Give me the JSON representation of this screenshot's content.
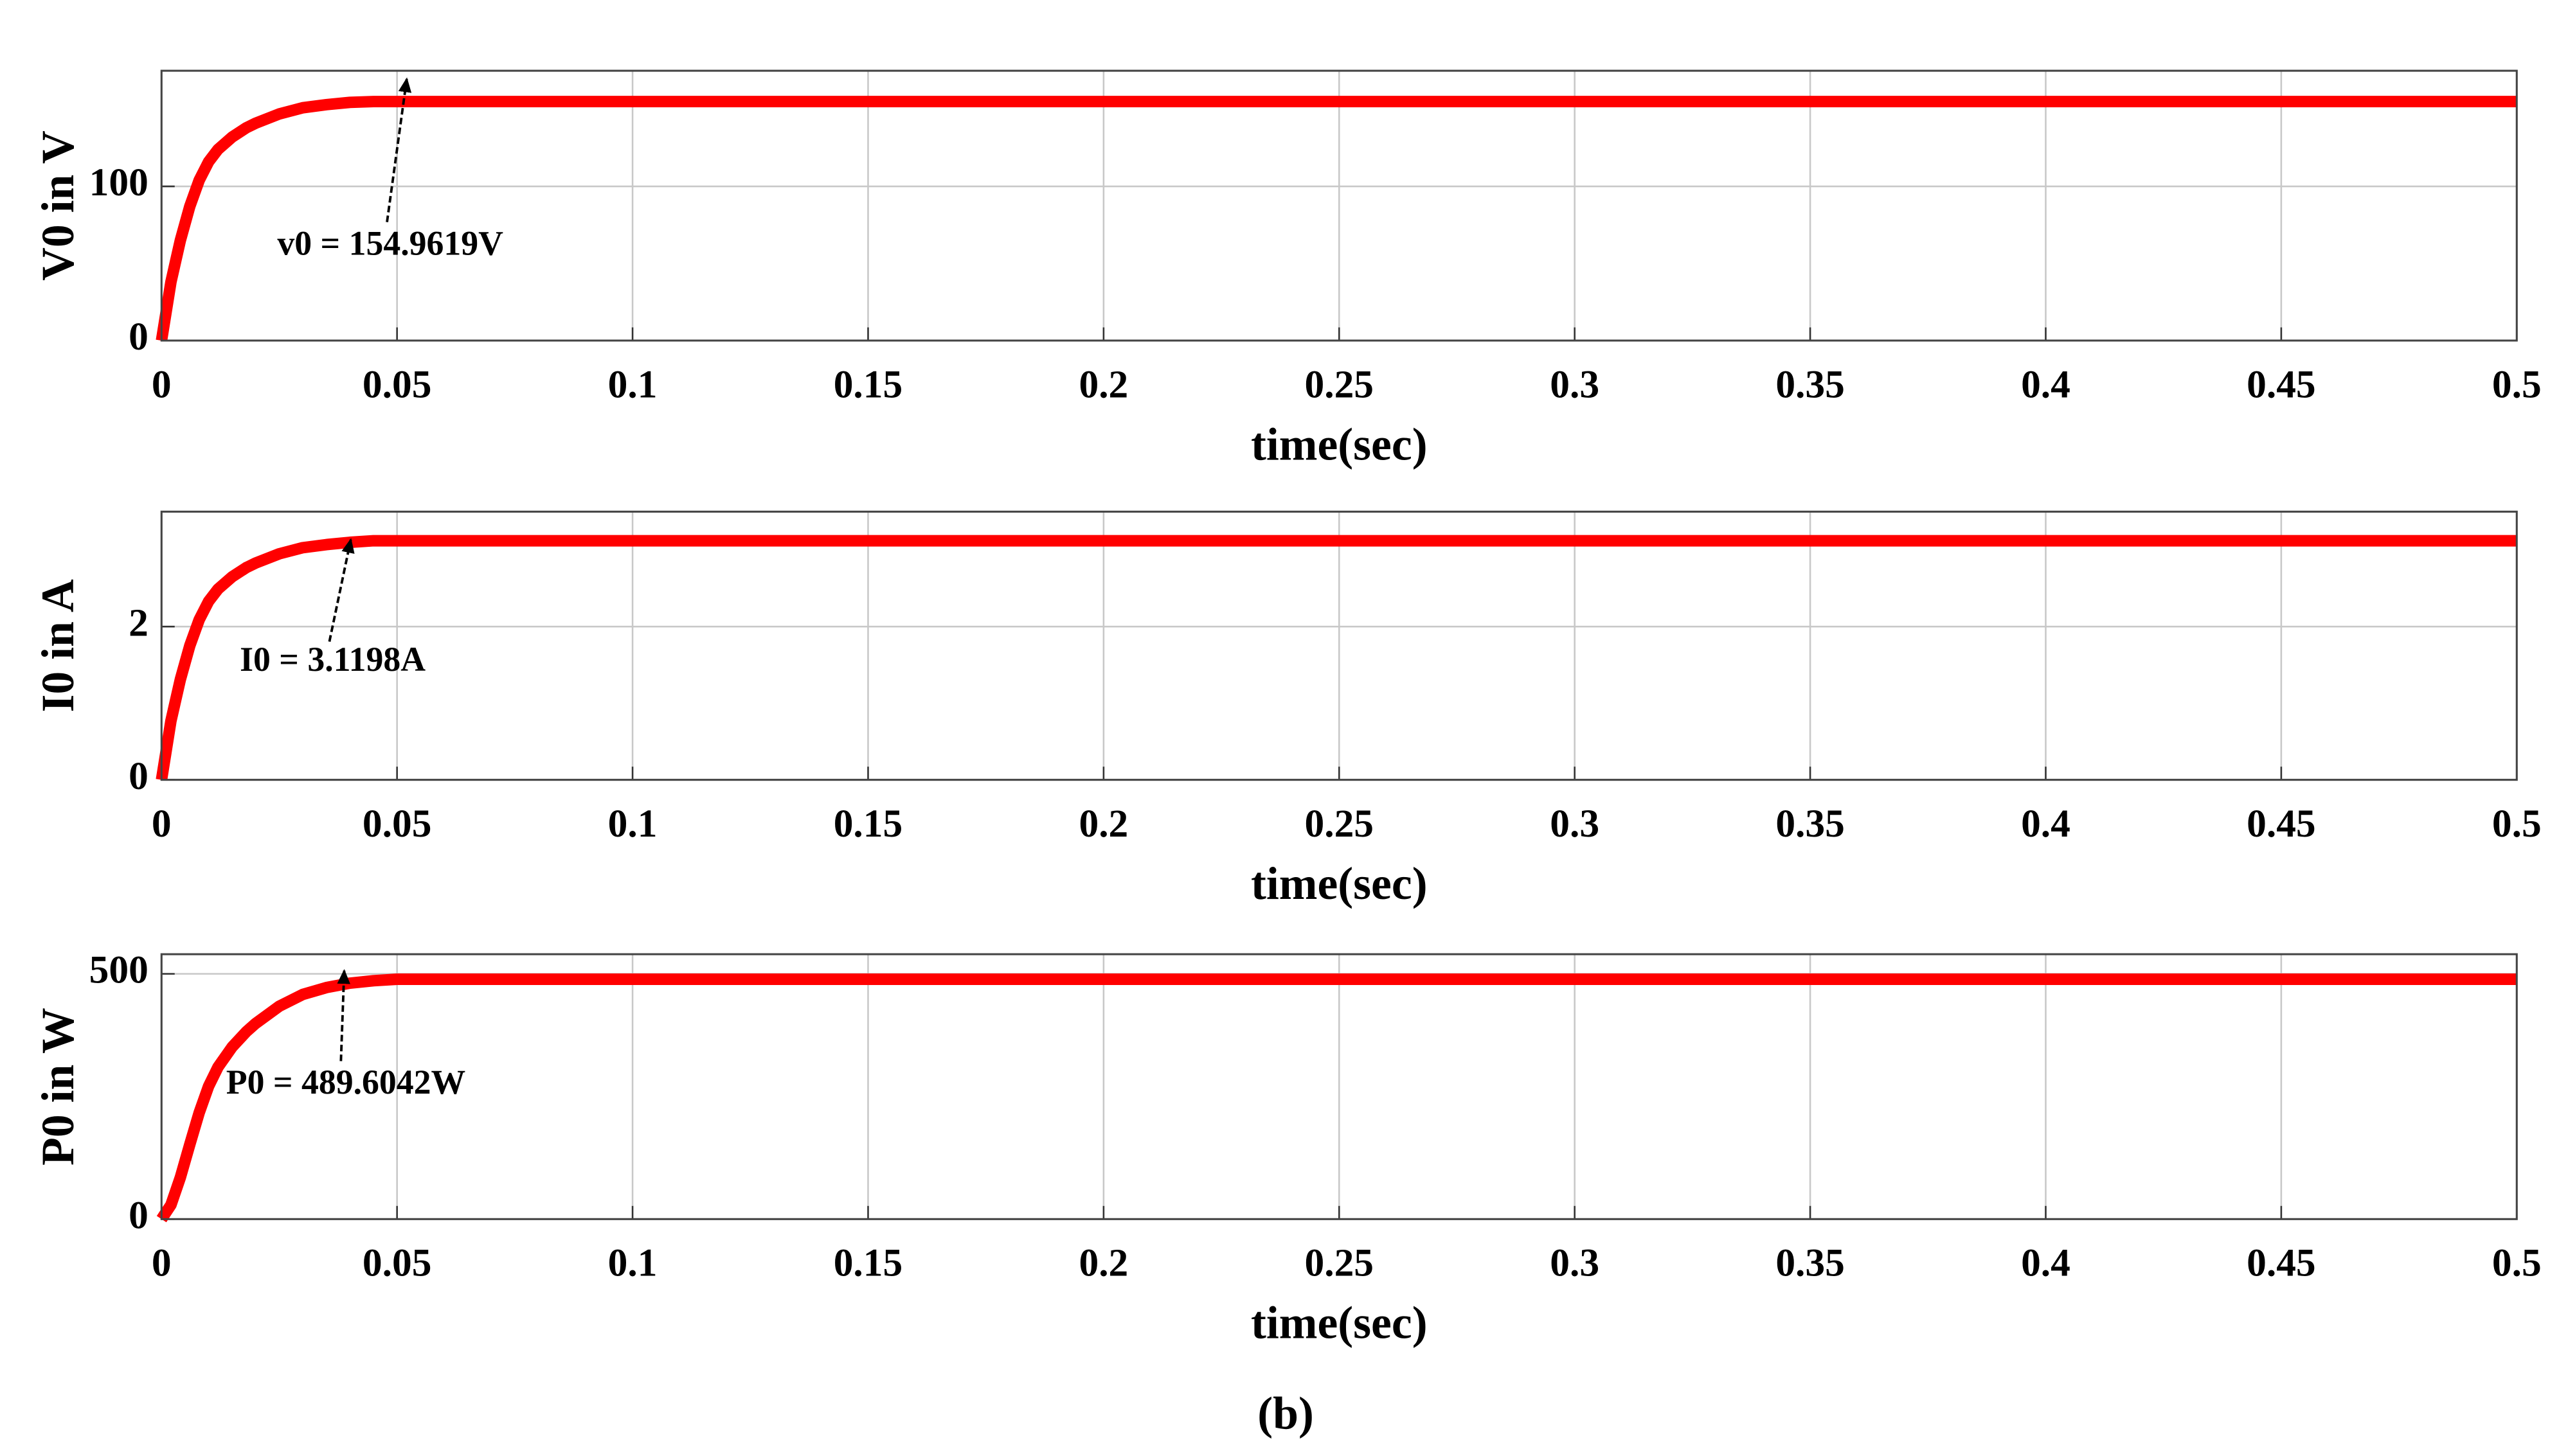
{
  "chart_data": [
    {
      "type": "line",
      "ylabel": "V0 in V",
      "xlabel": "time(sec)",
      "annotation": "v0 = 154.9619V",
      "color": "#ff0000",
      "grid": true,
      "x": [
        0,
        0.002,
        0.004,
        0.006,
        0.008,
        0.01,
        0.012,
        0.015,
        0.018,
        0.02,
        0.025,
        0.03,
        0.035,
        0.04,
        0.045,
        0.05,
        0.1,
        0.15,
        0.2,
        0.25,
        0.3,
        0.35,
        0.4,
        0.45,
        0.5
      ],
      "values": [
        0,
        38,
        65,
        87,
        104,
        116,
        124,
        132,
        138,
        141,
        147,
        151,
        153,
        154.5,
        155,
        155,
        155,
        155,
        155,
        155,
        155,
        155,
        155,
        155,
        155
      ],
      "xlim": [
        0,
        0.5
      ],
      "xticks": [
        0,
        0.05,
        0.1,
        0.15,
        0.2,
        0.25,
        0.3,
        0.35,
        0.4,
        0.45,
        0.5
      ],
      "ylim": [
        0,
        175
      ],
      "yticks": [
        0,
        100
      ]
    },
    {
      "type": "line",
      "ylabel": "I0 in A",
      "xlabel": "time(sec)",
      "annotation": "I0 = 3.1198A",
      "color": "#ff0000",
      "grid": true,
      "x": [
        0,
        0.002,
        0.004,
        0.006,
        0.008,
        0.01,
        0.012,
        0.015,
        0.018,
        0.02,
        0.025,
        0.03,
        0.035,
        0.04,
        0.045,
        0.05,
        0.1,
        0.15,
        0.2,
        0.25,
        0.3,
        0.35,
        0.4,
        0.45,
        0.5
      ],
      "values": [
        0,
        0.77,
        1.31,
        1.75,
        2.09,
        2.33,
        2.49,
        2.65,
        2.77,
        2.83,
        2.95,
        3.03,
        3.07,
        3.1,
        3.12,
        3.12,
        3.12,
        3.12,
        3.12,
        3.12,
        3.12,
        3.12,
        3.12,
        3.12,
        3.12
      ],
      "xlim": [
        0,
        0.5
      ],
      "xticks": [
        0,
        0.05,
        0.1,
        0.15,
        0.2,
        0.25,
        0.3,
        0.35,
        0.4,
        0.45,
        0.5
      ],
      "ylim": [
        0,
        3.5
      ],
      "yticks": [
        0,
        2
      ]
    },
    {
      "type": "line",
      "ylabel": "P0 in W",
      "xlabel": "time(sec)",
      "annotation": "P0 = 489.6042W",
      "color": "#ff0000",
      "grid": true,
      "x": [
        0,
        0.002,
        0.004,
        0.006,
        0.008,
        0.01,
        0.012,
        0.015,
        0.018,
        0.02,
        0.025,
        0.03,
        0.035,
        0.04,
        0.045,
        0.05,
        0.1,
        0.15,
        0.2,
        0.25,
        0.3,
        0.35,
        0.4,
        0.45,
        0.5
      ],
      "values": [
        0,
        29,
        85,
        152,
        217,
        271,
        310,
        351,
        382,
        399,
        434,
        458,
        472,
        481,
        486,
        489,
        489,
        489,
        489,
        489,
        489,
        489,
        489,
        489,
        489
      ],
      "xlim": [
        0,
        0.5
      ],
      "xticks": [
        0,
        0.05,
        0.1,
        0.15,
        0.2,
        0.25,
        0.3,
        0.35,
        0.4,
        0.45,
        0.5
      ],
      "ylim": [
        0,
        540
      ],
      "yticks": [
        0,
        500
      ]
    }
  ],
  "caption": "(b)"
}
